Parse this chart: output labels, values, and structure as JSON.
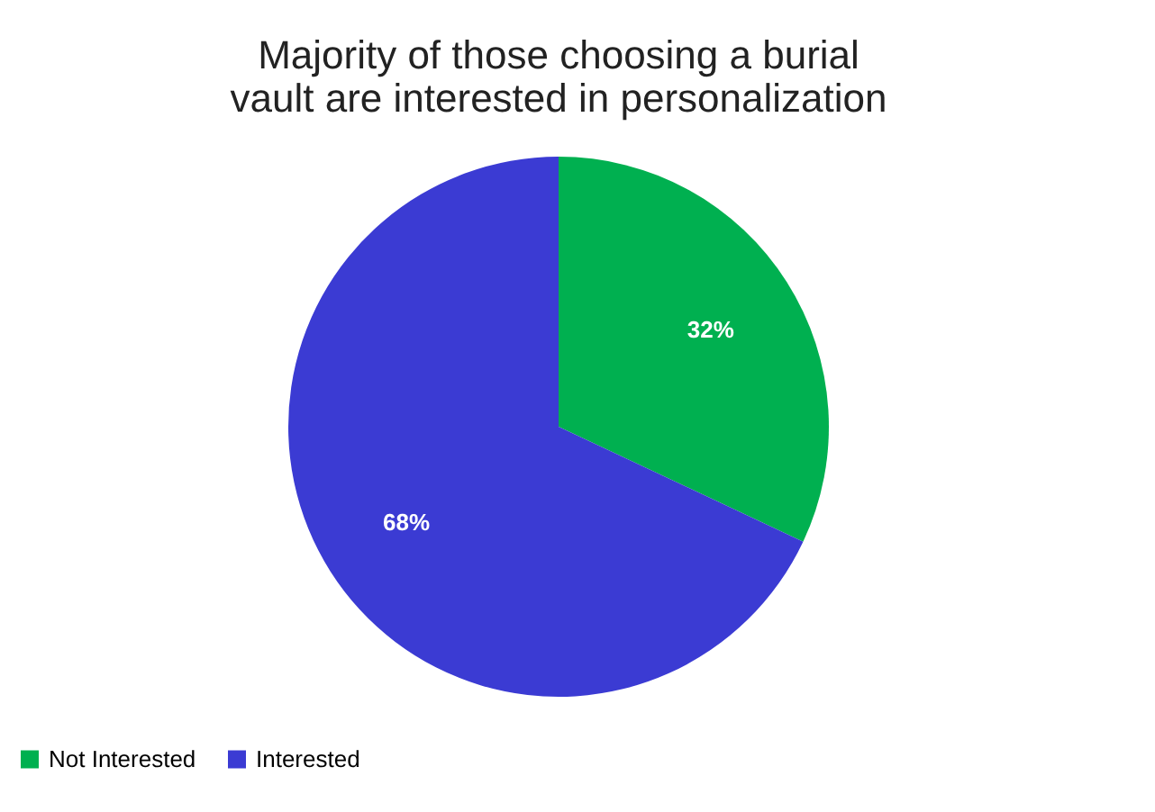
{
  "chart_data": {
    "type": "pie",
    "title": "Majority of those choosing a  burial vault are interested in personalization",
    "categories": [
      "Not Interested",
      "Interested"
    ],
    "values": [
      32,
      68
    ],
    "colors": [
      "#00b050",
      "#3b3bd3"
    ],
    "value_labels": [
      "32%",
      "68%"
    ],
    "legend": "bottom"
  }
}
